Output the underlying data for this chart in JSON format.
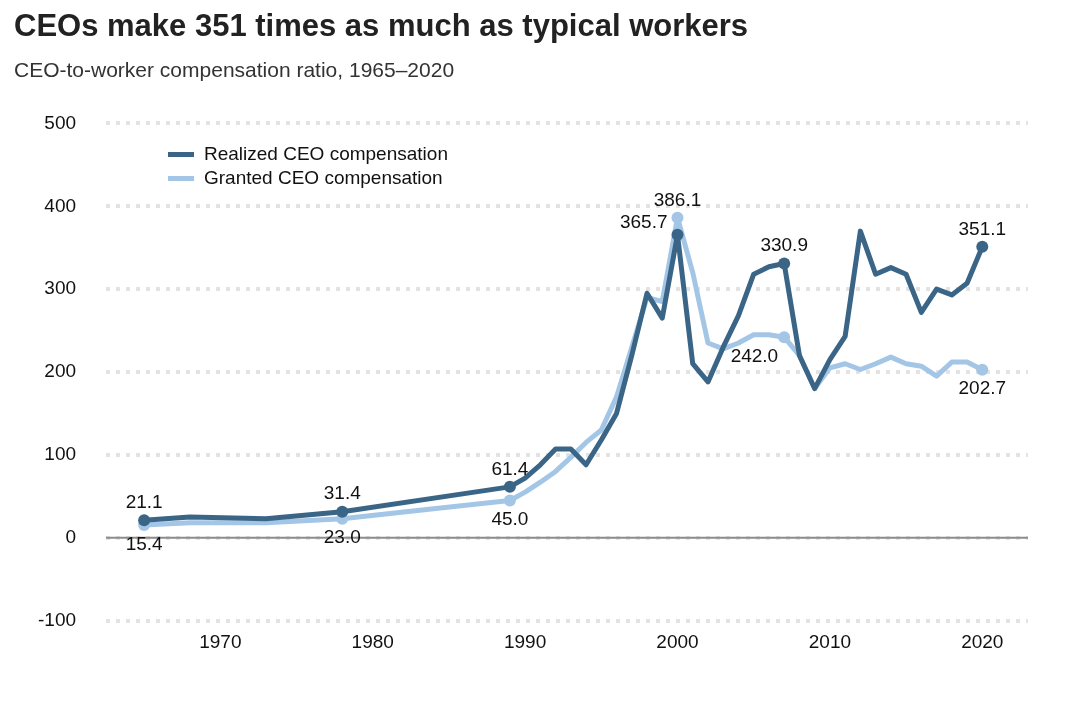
{
  "chart_data": {
    "type": "line",
    "title": "CEOs make 351 times as much as typical workers",
    "subtitle": "CEO-to-worker compensation ratio, 1965–2020",
    "x": [
      1965,
      1968,
      1973,
      1978,
      1989,
      1990,
      1991,
      1992,
      1993,
      1994,
      1995,
      1996,
      1997,
      1998,
      1999,
      2000,
      2001,
      2002,
      2003,
      2004,
      2005,
      2006,
      2007,
      2008,
      2009,
      2010,
      2011,
      2012,
      2013,
      2014,
      2015,
      2016,
      2017,
      2018,
      2019,
      2020
    ],
    "series": [
      {
        "name": "Realized CEO compensation",
        "color": "#3a6586",
        "values": [
          21.1,
          25,
          23,
          31.4,
          61.4,
          72,
          88,
          107,
          107,
          88,
          118,
          150,
          220,
          295,
          265,
          365.7,
          210,
          188,
          230,
          268,
          318,
          327,
          330.9,
          220,
          180,
          215,
          243,
          370,
          318,
          326,
          318,
          272,
          300,
          293,
          307,
          351.1
        ],
        "value_labels": [
          "21.1",
          null,
          null,
          "31.4",
          "61.4",
          null,
          null,
          null,
          null,
          null,
          null,
          null,
          null,
          null,
          null,
          "365.7",
          null,
          null,
          null,
          null,
          null,
          null,
          "330.9",
          null,
          null,
          null,
          null,
          null,
          null,
          null,
          null,
          null,
          null,
          null,
          null,
          "351.1"
        ]
      },
      {
        "name": "Granted CEO compensation",
        "color": "#a4c6e6",
        "values": [
          15.4,
          18,
          18,
          23.0,
          45.0,
          55,
          67,
          80,
          97,
          115,
          130,
          170,
          230,
          290,
          285,
          386.1,
          320,
          235,
          228,
          235,
          245,
          245,
          242.0,
          220,
          180,
          205,
          210,
          203,
          210,
          218,
          210,
          207,
          195,
          212,
          212,
          202.7
        ],
        "value_labels": [
          "15.4",
          null,
          null,
          "23.0",
          "45.0",
          null,
          null,
          null,
          null,
          null,
          null,
          null,
          null,
          null,
          null,
          "386.1",
          null,
          null,
          null,
          null,
          null,
          null,
          "242.0",
          null,
          null,
          null,
          null,
          null,
          null,
          null,
          null,
          null,
          null,
          null,
          null,
          "202.7"
        ]
      }
    ],
    "xlim": [
      1962.5,
      2023
    ],
    "xticks": [
      1970,
      1980,
      1990,
      2000,
      2010,
      2020
    ],
    "ylim": [
      -100,
      500
    ],
    "yticks": [
      -100,
      0,
      100,
      200,
      300,
      400,
      500
    ],
    "ref_lines": [
      {
        "axis": "y",
        "value": 0,
        "color": "#8c8c8c"
      }
    ],
    "grid": "y",
    "legend": "top left",
    "line_style": "solid"
  }
}
